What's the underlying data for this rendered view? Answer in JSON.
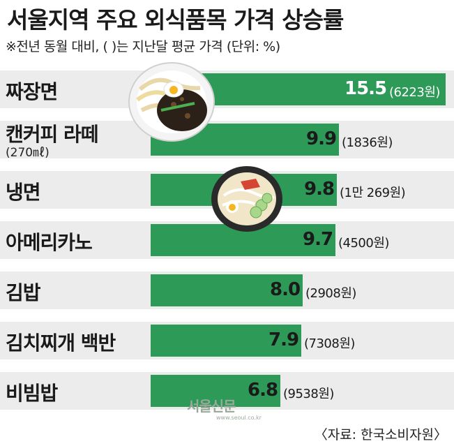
{
  "header": {
    "title": "서울지역 주요 외식품목 가격 상승률",
    "subtitle": "※전년 동월 대비, (  )는 지난달 평균 가격 (단위: %)"
  },
  "chart_data": {
    "type": "bar",
    "orientation": "horizontal",
    "title": "서울지역 주요 외식품목 가격 상승률",
    "subtitle": "※전년 동월 대비, (  )는 지난달 평균 가격 (단위: %)",
    "categories": [
      "짜장면",
      "캔커피 라떼",
      "냉면",
      "아메리카노",
      "김밥",
      "김치찌개 백반",
      "비빔밥"
    ],
    "category_notes": [
      "",
      "(270㎖)",
      "",
      "",
      "",
      "",
      ""
    ],
    "values": [
      15.5,
      9.9,
      9.8,
      9.7,
      8.0,
      7.9,
      6.8
    ],
    "value_labels": [
      "15.5",
      "9.9",
      "9.8",
      "9.7",
      "8.0",
      "7.9",
      "6.8"
    ],
    "price_labels": [
      "(6223원)",
      "(1836원)",
      "(1만 269원)",
      "(4500원)",
      "(2908원)",
      "(7308원)",
      "(9538원)"
    ],
    "xlim": [
      0,
      15.5
    ],
    "bar_color": "#2e9a57",
    "band_color": "#ececec",
    "grid": false,
    "legend": "none",
    "source": "〈자료: 한국소비자원〉"
  },
  "illustrations": {
    "jajangmyeon": "jajangmyeon-bowl-icon",
    "naengmyeon": "naengmyeon-bowl-icon"
  },
  "watermark": {
    "logo": "서울신문",
    "url": "www.seoul.co.kr"
  }
}
